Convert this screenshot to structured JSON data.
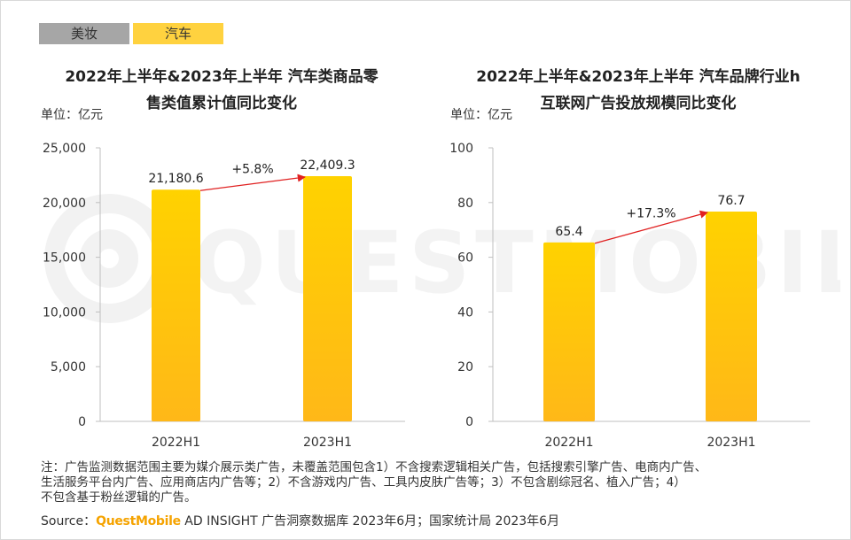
{
  "tabs": [
    {
      "label": "美妆",
      "active": false
    },
    {
      "label": "汽车",
      "active": true
    }
  ],
  "watermark": {
    "text": "QUESTMOBILE"
  },
  "charts": [
    {
      "title_line1": "2022年上半年&2023年上半年 汽车类商品零",
      "title_line2": "售类值累计值同比变化",
      "unit": "单位：亿元",
      "growth_label": "+5.8%"
    },
    {
      "title_line1": "2022年上半年&2023年上半年 汽车品牌行业h",
      "title_line2": "互联网广告投放规模同比变化",
      "unit": "单位：亿元",
      "growth_label": "+17.3%"
    }
  ],
  "chart_data": [
    {
      "type": "bar",
      "title": "2022年上半年&2023年上半年 汽车类商品零售类值累计值同比变化",
      "ylabel": "单位：亿元",
      "categories": [
        "2022H1",
        "2023H1"
      ],
      "values": [
        21180.6,
        22409.3
      ],
      "value_labels": [
        "21,180.6",
        "22,409.3"
      ],
      "yticks": [
        0,
        5000,
        10000,
        15000,
        20000,
        25000
      ],
      "ytick_labels": [
        "0",
        "5,000",
        "10,000",
        "15,000",
        "20,000",
        "25,000"
      ],
      "ylim": [
        0,
        25000
      ],
      "annotation": "+5.8%",
      "grid": false,
      "colors": {
        "bar_top": "#ffd200",
        "bar_bottom": "#ffb818",
        "arrow": "#e02020"
      }
    },
    {
      "type": "bar",
      "title": "2022年上半年&2023年上半年 汽车品牌行业h互联网广告投放规模同比变化",
      "ylabel": "单位：亿元",
      "categories": [
        "2022H1",
        "2023H1"
      ],
      "values": [
        65.4,
        76.7
      ],
      "value_labels": [
        "65.4",
        "76.7"
      ],
      "yticks": [
        0,
        20,
        40,
        60,
        80,
        100
      ],
      "ytick_labels": [
        "0",
        "20",
        "40",
        "60",
        "80",
        "100"
      ],
      "ylim": [
        0,
        100
      ],
      "annotation": "+17.3%",
      "grid": false,
      "colors": {
        "bar_top": "#ffd200",
        "bar_bottom": "#ffb818",
        "arrow": "#e02020"
      }
    }
  ],
  "footer": {
    "notes_line1": "注：广告监测数据范围主要为媒介展示类广告，未覆盖范围包含1）不含搜索逻辑相关广告，包括搜索引擎广告、电商内广告、",
    "notes_line2": "生活服务平台内广告、应用商店内广告等；2）不含游戏内广告、工具内皮肤广告等；3）不包含剧综冠名、植入广告；4）",
    "notes_line3": "不包含基于粉丝逻辑的广告。",
    "source_prefix": "Source：",
    "source_brand": "QuestMobile",
    "source_rest": " AD INSIGHT 广告洞察数据库 2023年6月；国家统计局 2023年6月"
  }
}
